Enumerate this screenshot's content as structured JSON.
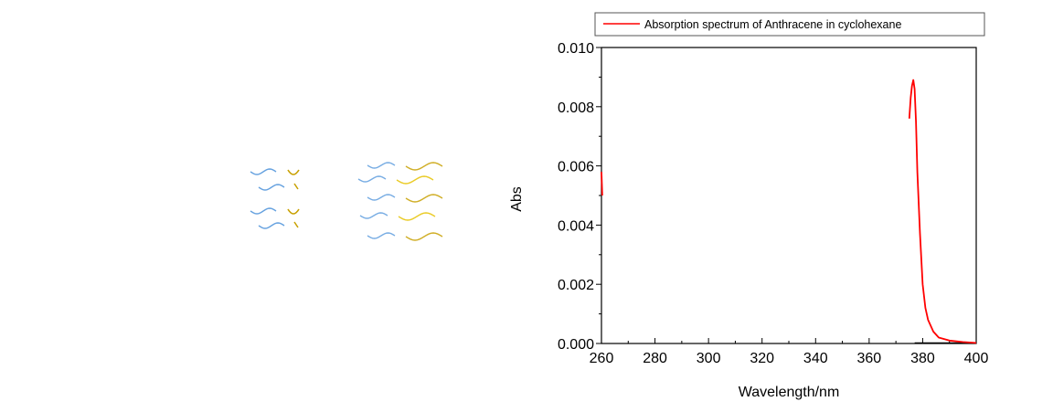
{
  "chart_data": {
    "type": "line",
    "title": "",
    "xlabel": "Wavelength/nm",
    "ylabel": "Abs",
    "xlim": [
      260,
      400
    ],
    "ylim": [
      0,
      0.01
    ],
    "x_ticks": [
      "260",
      "280",
      "300",
      "320",
      "340",
      "360",
      "380",
      "400"
    ],
    "y_ticks": [
      "0.000",
      "0.002",
      "0.004",
      "0.006",
      "0.008",
      "0.010"
    ],
    "grid": false,
    "legend_position": "top",
    "series": [
      {
        "name": "Absorption spectrum of Anthracene in cyclohexane",
        "color": "#ff0000",
        "points": [
          [
            260,
            0.0058
          ],
          [
            260.3,
            0.005
          ],
          [
            375.0,
            0.0076
          ],
          [
            375.5,
            0.0083
          ],
          [
            376.0,
            0.0087
          ],
          [
            376.5,
            0.0089
          ],
          [
            377.0,
            0.0086
          ],
          [
            377.5,
            0.0075
          ],
          [
            378.0,
            0.0058
          ],
          [
            379.0,
            0.0037
          ],
          [
            380.0,
            0.002
          ],
          [
            381.0,
            0.0012
          ],
          [
            382.0,
            0.0008
          ],
          [
            384.0,
            0.0004
          ],
          [
            386.0,
            0.0002
          ],
          [
            390.0,
            0.0001
          ],
          [
            395.0,
            5e-05
          ],
          [
            400.0,
            2e-05
          ]
        ]
      }
    ],
    "baseline_segment": {
      "color": "#000000",
      "x": [
        377,
        400
      ],
      "y": 0
    }
  },
  "decoration": {
    "wave_colors": [
      "#4a90d9",
      "#c8a000",
      "#e6c200"
    ]
  }
}
